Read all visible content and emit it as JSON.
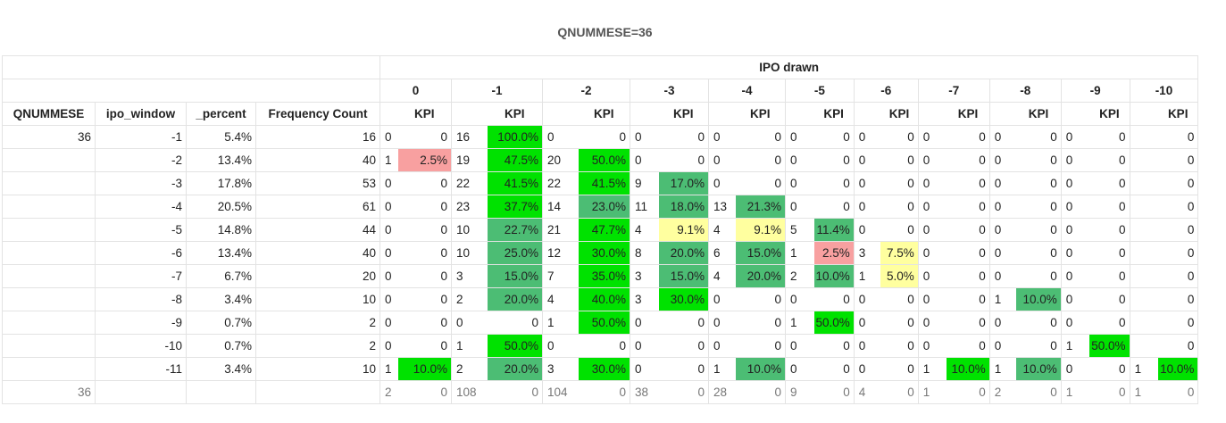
{
  "title": "QNUMMESE=36",
  "group_header": "IPO drawn",
  "row_headers": [
    "QNUMMESE",
    "ipo_window",
    "_percent",
    "Frequency Count"
  ],
  "windows": [
    "0",
    "-1",
    "-2",
    "-3",
    "-4",
    "-5",
    "-6",
    "-7",
    "-8",
    "-9",
    "-10"
  ],
  "kpi_label": "KPI",
  "colors": {
    "green": "#00e200",
    "teal": "#4cbd74",
    "yellow": "#ffff9f",
    "red": "#f8a0a0"
  },
  "rows": [
    {
      "qnum": "36",
      "ipo": "-1",
      "pct": "5.4%",
      "freq": "16",
      "cells": [
        [
          "0",
          "0",
          ""
        ],
        [
          "16",
          "100.0%",
          "green"
        ],
        [
          "0",
          "0",
          ""
        ],
        [
          "0",
          "0",
          ""
        ],
        [
          "0",
          "0",
          ""
        ],
        [
          "0",
          "0",
          ""
        ],
        [
          "0",
          "0",
          ""
        ],
        [
          "0",
          "0",
          ""
        ],
        [
          "0",
          "0",
          ""
        ],
        [
          "0",
          "0",
          ""
        ],
        [
          "",
          "0",
          ""
        ]
      ]
    },
    {
      "qnum": "",
      "ipo": "-2",
      "pct": "13.4%",
      "freq": "40",
      "cells": [
        [
          "1",
          "2.5%",
          "red"
        ],
        [
          "19",
          "47.5%",
          "green"
        ],
        [
          "20",
          "50.0%",
          "green"
        ],
        [
          "0",
          "0",
          ""
        ],
        [
          "0",
          "0",
          ""
        ],
        [
          "0",
          "0",
          ""
        ],
        [
          "0",
          "0",
          ""
        ],
        [
          "0",
          "0",
          ""
        ],
        [
          "0",
          "0",
          ""
        ],
        [
          "0",
          "0",
          ""
        ],
        [
          "",
          "0",
          ""
        ]
      ]
    },
    {
      "qnum": "",
      "ipo": "-3",
      "pct": "17.8%",
      "freq": "53",
      "cells": [
        [
          "0",
          "0",
          ""
        ],
        [
          "22",
          "41.5%",
          "green"
        ],
        [
          "22",
          "41.5%",
          "green"
        ],
        [
          "9",
          "17.0%",
          "teal"
        ],
        [
          "0",
          "0",
          ""
        ],
        [
          "0",
          "0",
          ""
        ],
        [
          "0",
          "0",
          ""
        ],
        [
          "0",
          "0",
          ""
        ],
        [
          "0",
          "0",
          ""
        ],
        [
          "0",
          "0",
          ""
        ],
        [
          "",
          "0",
          ""
        ]
      ]
    },
    {
      "qnum": "",
      "ipo": "-4",
      "pct": "20.5%",
      "freq": "61",
      "cells": [
        [
          "0",
          "0",
          ""
        ],
        [
          "23",
          "37.7%",
          "green"
        ],
        [
          "14",
          "23.0%",
          "teal"
        ],
        [
          "11",
          "18.0%",
          "teal"
        ],
        [
          "13",
          "21.3%",
          "teal"
        ],
        [
          "0",
          "0",
          ""
        ],
        [
          "0",
          "0",
          ""
        ],
        [
          "0",
          "0",
          ""
        ],
        [
          "0",
          "0",
          ""
        ],
        [
          "0",
          "0",
          ""
        ],
        [
          "",
          "0",
          ""
        ]
      ]
    },
    {
      "qnum": "",
      "ipo": "-5",
      "pct": "14.8%",
      "freq": "44",
      "cells": [
        [
          "0",
          "0",
          ""
        ],
        [
          "10",
          "22.7%",
          "teal"
        ],
        [
          "21",
          "47.7%",
          "green"
        ],
        [
          "4",
          "9.1%",
          "yellow"
        ],
        [
          "4",
          "9.1%",
          "yellow"
        ],
        [
          "5",
          "11.4%",
          "teal"
        ],
        [
          "0",
          "0",
          ""
        ],
        [
          "0",
          "0",
          ""
        ],
        [
          "0",
          "0",
          ""
        ],
        [
          "0",
          "0",
          ""
        ],
        [
          "",
          "0",
          ""
        ]
      ]
    },
    {
      "qnum": "",
      "ipo": "-6",
      "pct": "13.4%",
      "freq": "40",
      "cells": [
        [
          "0",
          "0",
          ""
        ],
        [
          "10",
          "25.0%",
          "teal"
        ],
        [
          "12",
          "30.0%",
          "green"
        ],
        [
          "8",
          "20.0%",
          "teal"
        ],
        [
          "6",
          "15.0%",
          "teal"
        ],
        [
          "1",
          "2.5%",
          "red"
        ],
        [
          "3",
          "7.5%",
          "yellow"
        ],
        [
          "0",
          "0",
          ""
        ],
        [
          "0",
          "0",
          ""
        ],
        [
          "0",
          "0",
          ""
        ],
        [
          "",
          "0",
          ""
        ]
      ]
    },
    {
      "qnum": "",
      "ipo": "-7",
      "pct": "6.7%",
      "freq": "20",
      "cells": [
        [
          "0",
          "0",
          ""
        ],
        [
          "3",
          "15.0%",
          "teal"
        ],
        [
          "7",
          "35.0%",
          "green"
        ],
        [
          "3",
          "15.0%",
          "teal"
        ],
        [
          "4",
          "20.0%",
          "teal"
        ],
        [
          "2",
          "10.0%",
          "teal"
        ],
        [
          "1",
          "5.0%",
          "yellow"
        ],
        [
          "0",
          "0",
          ""
        ],
        [
          "0",
          "0",
          ""
        ],
        [
          "0",
          "0",
          ""
        ],
        [
          "",
          "0",
          ""
        ]
      ]
    },
    {
      "qnum": "",
      "ipo": "-8",
      "pct": "3.4%",
      "freq": "10",
      "cells": [
        [
          "0",
          "0",
          ""
        ],
        [
          "2",
          "20.0%",
          "teal"
        ],
        [
          "4",
          "40.0%",
          "green"
        ],
        [
          "3",
          "30.0%",
          "green"
        ],
        [
          "0",
          "0",
          ""
        ],
        [
          "0",
          "0",
          ""
        ],
        [
          "0",
          "0",
          ""
        ],
        [
          "0",
          "0",
          ""
        ],
        [
          "1",
          "10.0%",
          "teal"
        ],
        [
          "0",
          "0",
          ""
        ],
        [
          "",
          "0",
          ""
        ]
      ]
    },
    {
      "qnum": "",
      "ipo": "-9",
      "pct": "0.7%",
      "freq": "2",
      "cells": [
        [
          "0",
          "0",
          ""
        ],
        [
          "0",
          "0",
          ""
        ],
        [
          "1",
          "50.0%",
          "green"
        ],
        [
          "0",
          "0",
          ""
        ],
        [
          "0",
          "0",
          ""
        ],
        [
          "1",
          "50.0%",
          "green"
        ],
        [
          "0",
          "0",
          ""
        ],
        [
          "0",
          "0",
          ""
        ],
        [
          "0",
          "0",
          ""
        ],
        [
          "0",
          "0",
          ""
        ],
        [
          "",
          "0",
          ""
        ]
      ]
    },
    {
      "qnum": "",
      "ipo": "-10",
      "pct": "0.7%",
      "freq": "2",
      "cells": [
        [
          "0",
          "0",
          ""
        ],
        [
          "1",
          "50.0%",
          "green"
        ],
        [
          "0",
          "0",
          ""
        ],
        [
          "0",
          "0",
          ""
        ],
        [
          "0",
          "0",
          ""
        ],
        [
          "0",
          "0",
          ""
        ],
        [
          "0",
          "0",
          ""
        ],
        [
          "0",
          "0",
          ""
        ],
        [
          "0",
          "0",
          ""
        ],
        [
          "1",
          "50.0%",
          "green"
        ],
        [
          "",
          "0",
          ""
        ]
      ]
    },
    {
      "qnum": "",
      "ipo": "-11",
      "pct": "3.4%",
      "freq": "10",
      "cells": [
        [
          "1",
          "10.0%",
          "green"
        ],
        [
          "2",
          "20.0%",
          "teal"
        ],
        [
          "3",
          "30.0%",
          "green"
        ],
        [
          "0",
          "0",
          ""
        ],
        [
          "1",
          "10.0%",
          "teal"
        ],
        [
          "0",
          "0",
          ""
        ],
        [
          "0",
          "0",
          ""
        ],
        [
          "1",
          "10.0%",
          "green"
        ],
        [
          "1",
          "10.0%",
          "teal"
        ],
        [
          "0",
          "0",
          ""
        ],
        [
          "1",
          "10.0%",
          "green"
        ]
      ]
    }
  ],
  "totals": {
    "qnum": "36",
    "cells": [
      [
        "2",
        "0"
      ],
      [
        "108",
        "0"
      ],
      [
        "104",
        "0"
      ],
      [
        "38",
        "0"
      ],
      [
        "28",
        "0"
      ],
      [
        "9",
        "0"
      ],
      [
        "4",
        "0"
      ],
      [
        "1",
        "0"
      ],
      [
        "2",
        "0"
      ],
      [
        "1",
        "0"
      ],
      [
        "1",
        "0"
      ]
    ]
  }
}
